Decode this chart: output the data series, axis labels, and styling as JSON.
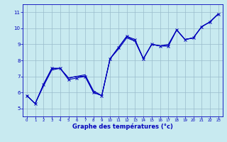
{
  "xlabel": "Graphe des températures (°c)",
  "xlim": [
    -0.5,
    23.5
  ],
  "ylim": [
    4.5,
    11.5
  ],
  "xticks": [
    0,
    1,
    2,
    3,
    4,
    5,
    6,
    7,
    8,
    9,
    10,
    11,
    12,
    13,
    14,
    15,
    16,
    17,
    18,
    19,
    20,
    21,
    22,
    23
  ],
  "yticks": [
    5,
    6,
    7,
    8,
    9,
    10,
    11
  ],
  "background_color": "#c8eaf0",
  "grid_color": "#99bbcc",
  "line_color": "#0000bb",
  "s1_x": [
    0,
    1,
    2,
    3,
    4,
    5,
    6,
    7,
    8,
    9,
    10,
    11,
    12,
    13,
    14,
    15,
    16,
    17,
    18,
    19,
    20,
    21,
    22,
    23
  ],
  "s1_y": [
    5.8,
    5.3,
    6.5,
    7.5,
    7.5,
    6.8,
    6.9,
    7.0,
    6.0,
    5.8,
    8.1,
    8.8,
    9.5,
    9.3,
    8.1,
    9.0,
    8.9,
    8.9,
    9.9,
    9.3,
    9.4,
    10.1,
    10.4,
    10.9
  ],
  "s2_x": [
    0,
    1,
    2,
    3,
    4,
    5,
    6,
    7,
    8,
    9,
    10,
    11,
    12,
    13,
    14,
    15,
    16,
    17,
    18,
    19,
    20,
    21,
    22,
    23
  ],
  "s2_y": [
    5.8,
    5.3,
    6.4,
    7.4,
    7.5,
    6.9,
    7.0,
    7.1,
    6.1,
    5.8,
    8.1,
    8.7,
    9.4,
    9.2,
    8.1,
    9.0,
    8.9,
    9.0,
    9.9,
    9.3,
    9.4,
    10.1,
    10.4,
    10.9
  ],
  "s3_x": [
    0,
    1,
    2,
    3,
    4,
    5,
    6,
    7,
    8,
    9,
    10,
    11,
    12,
    13,
    14,
    15,
    16,
    17,
    18,
    19,
    20,
    21,
    22,
    23
  ],
  "s3_y": [
    5.8,
    5.3,
    6.5,
    7.5,
    7.5,
    6.9,
    7.0,
    7.0,
    6.0,
    5.8,
    8.1,
    8.8,
    9.5,
    9.2,
    8.1,
    9.0,
    8.9,
    8.9,
    9.9,
    9.3,
    9.4,
    10.1,
    10.4,
    10.9
  ],
  "figsize": [
    3.2,
    2.0
  ],
  "dpi": 100
}
